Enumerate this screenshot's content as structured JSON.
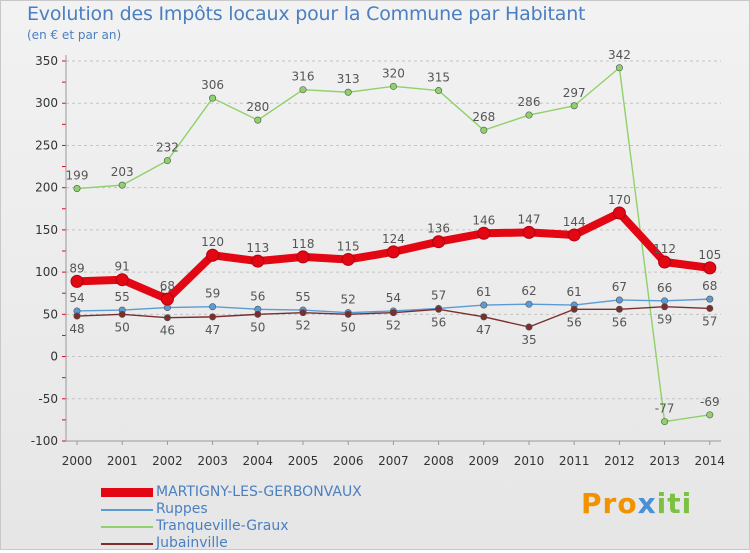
{
  "title": "Evolution des Impôts locaux pour la Commune par Habitant",
  "subtitle": "(en € et par an)",
  "brand": {
    "text": "Proxiti",
    "parts": [
      "Pro",
      "x",
      "iti"
    ]
  },
  "chart_data": {
    "type": "line",
    "x": [
      "2000",
      "2001",
      "2002",
      "2003",
      "2004",
      "2005",
      "2006",
      "2007",
      "2008",
      "2009",
      "2010",
      "2011",
      "2012",
      "2013",
      "2014"
    ],
    "ylim": [
      -100,
      350
    ],
    "yticks": [
      -100,
      -50,
      0,
      50,
      100,
      150,
      200,
      250,
      300,
      350
    ],
    "series": [
      {
        "name": "MARTIGNY-LES-GERBONVAUX",
        "color": "#e30613",
        "values": [
          89,
          91,
          68,
          120,
          113,
          118,
          115,
          124,
          136,
          146,
          147,
          144,
          170,
          112,
          105
        ]
      },
      {
        "name": "Ruppes",
        "color": "#5b9bd5",
        "values": [
          54,
          55,
          58,
          59,
          56,
          55,
          52,
          54,
          57,
          61,
          62,
          61,
          67,
          66,
          68
        ]
      },
      {
        "name": "Tranqueville-Graux",
        "color": "#8fd16a",
        "values": [
          199,
          203,
          232,
          306,
          280,
          316,
          313,
          320,
          315,
          268,
          286,
          297,
          342,
          -77,
          -69
        ]
      },
      {
        "name": "Jubainville",
        "color": "#7b2e2e",
        "values": [
          48,
          50,
          46,
          47,
          50,
          52,
          50,
          52,
          56,
          47,
          35,
          56,
          56,
          59,
          57
        ]
      }
    ]
  }
}
